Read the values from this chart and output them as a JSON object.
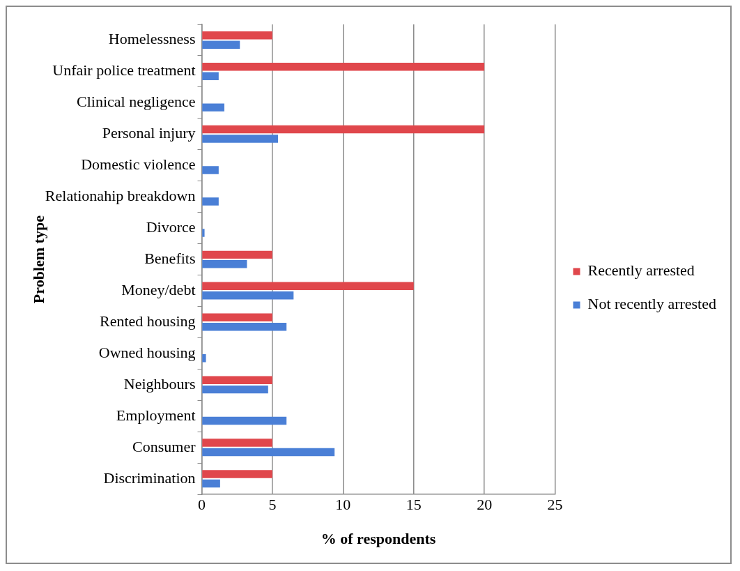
{
  "chart_data": {
    "type": "bar",
    "orientation": "horizontal",
    "xlabel": "% of respondents",
    "ylabel": "Problem type",
    "categories": [
      "Homelessness",
      "Unfair police treatment",
      "Clinical negligence",
      "Personal injury",
      "Domestic violence",
      "Relationahip breakdown",
      "Divorce",
      "Benefits",
      "Money/debt",
      "Rented housing",
      "Owned housing",
      "Neighbours",
      "Employment",
      "Consumer",
      "Discrimination"
    ],
    "series": [
      {
        "name": "Recently arrested",
        "color": "#e0474c",
        "values": [
          5,
          20,
          0,
          20,
          0,
          0,
          0,
          5,
          15,
          5,
          0,
          5,
          0,
          5,
          5
        ]
      },
      {
        "name": "Not recently arrested",
        "color": "#4a7fd6",
        "values": [
          2.7,
          1.2,
          1.6,
          5.4,
          1.2,
          1.2,
          0.2,
          3.2,
          6.5,
          6.0,
          0.3,
          4.7,
          6.0,
          9.4,
          1.3
        ]
      }
    ],
    "xlim": [
      0,
      25
    ],
    "xticks": [
      0,
      5,
      10,
      15,
      20,
      25
    ],
    "grid": "x",
    "legend": "right"
  }
}
